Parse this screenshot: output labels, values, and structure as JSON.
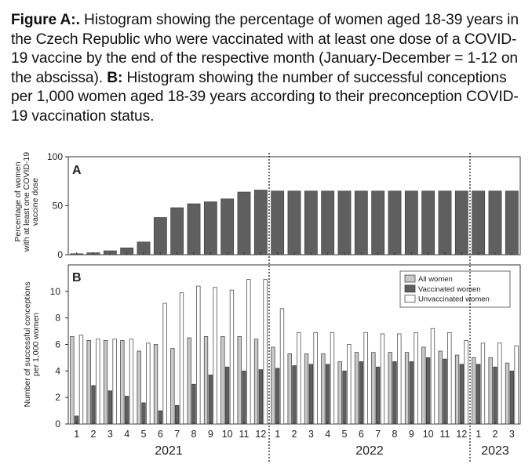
{
  "caption": {
    "label_a": "Figure A:.",
    "text_a": " Histogram showing the percentage of women aged 18-39 years in the Czech Republic who were vaccinated with at least one dose of a COVID-19 vaccine by the end of the respective month (January-December = 1-12 on the abscissa). ",
    "label_b": "B:",
    "text_b": " Histogram showing the number of successful conceptions per 1,000 women aged 18-39 years according to their preconception COVID-19 vaccination status."
  },
  "chart_data": [
    {
      "type": "bar",
      "panel": "A",
      "ylabel": [
        "Percentage of women",
        "with at least one COVID-19",
        "vaccine dose"
      ],
      "ylim": [
        0,
        100
      ],
      "yticks": [
        0,
        50,
        100
      ],
      "colors": {
        "bar": "#5f5f5f"
      },
      "categories": [
        "1",
        "2",
        "3",
        "4",
        "5",
        "6",
        "7",
        "8",
        "9",
        "10",
        "11",
        "12",
        "1",
        "2",
        "3",
        "4",
        "5",
        "6",
        "7",
        "8",
        "9",
        "10",
        "11",
        "12",
        "1",
        "2",
        "3"
      ],
      "years": [
        {
          "label": "2021",
          "count": 12
        },
        {
          "label": "2022",
          "count": 12
        },
        {
          "label": "2023",
          "count": 3
        }
      ],
      "values": [
        1,
        2,
        4,
        7,
        13,
        38,
        48,
        52,
        54,
        57,
        64,
        66,
        65,
        65,
        65,
        65,
        65,
        65,
        65,
        65,
        65,
        65,
        65,
        65,
        65,
        65,
        65
      ]
    },
    {
      "type": "bar",
      "panel": "B",
      "ylabel": [
        "Number of successful conceptions",
        "per 1,000 women"
      ],
      "ylim": [
        0,
        12
      ],
      "yticks": [
        0,
        2,
        4,
        6,
        8,
        10
      ],
      "legend_position": "top-right",
      "categories": [
        "1",
        "2",
        "3",
        "4",
        "5",
        "6",
        "7",
        "8",
        "9",
        "10",
        "11",
        "12",
        "1",
        "2",
        "3",
        "4",
        "5",
        "6",
        "7",
        "8",
        "9",
        "10",
        "11",
        "12",
        "1",
        "2",
        "3"
      ],
      "years": [
        {
          "label": "2021",
          "count": 12
        },
        {
          "label": "2022",
          "count": 12
        },
        {
          "label": "2023",
          "count": 3
        }
      ],
      "series": [
        {
          "name": "All women",
          "color": "#c8c8c8",
          "values": [
            6.6,
            6.3,
            6.3,
            6.3,
            5.5,
            6.0,
            5.7,
            6.5,
            6.6,
            6.6,
            6.6,
            6.4,
            5.8,
            5.3,
            5.3,
            5.3,
            4.7,
            5.4,
            5.4,
            5.4,
            5.4,
            5.8,
            5.5,
            5.2,
            5.0,
            5.0,
            4.6
          ]
        },
        {
          "name": "Vaccinated women",
          "color": "#5f5f5f",
          "values": [
            0.6,
            2.9,
            2.5,
            2.1,
            1.6,
            1.0,
            1.4,
            3.0,
            3.7,
            4.3,
            4.0,
            4.1,
            4.2,
            4.4,
            4.5,
            4.5,
            4.0,
            4.7,
            4.3,
            4.7,
            4.7,
            5.0,
            4.9,
            4.5,
            4.5,
            4.3,
            4.0
          ]
        },
        {
          "name": "Unvaccinated women",
          "color": "#ffffff",
          "values": [
            6.7,
            6.4,
            6.4,
            6.4,
            6.1,
            9.1,
            9.9,
            10.4,
            10.3,
            10.1,
            10.9,
            10.9,
            8.7,
            6.9,
            6.9,
            6.9,
            6.0,
            6.9,
            6.8,
            6.8,
            6.9,
            7.2,
            6.9,
            6.3,
            6.1,
            6.1,
            5.9
          ]
        }
      ]
    }
  ]
}
